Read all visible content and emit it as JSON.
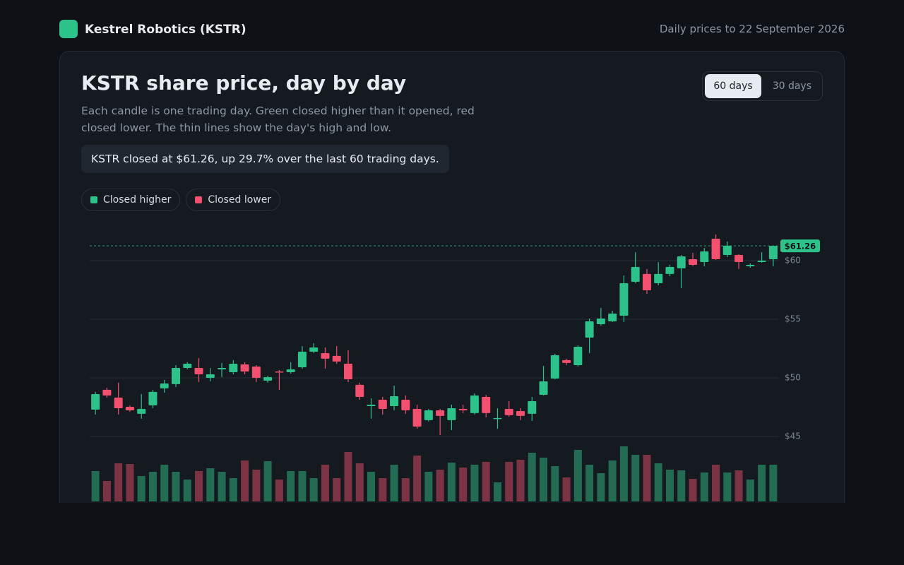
{
  "header": {
    "brand": "Kestrel Robotics (KSTR)",
    "updated": "Daily prices to 22 September 2026"
  },
  "controls": {
    "ranges": [
      "60 days",
      "30 days"
    ],
    "active": 0
  },
  "summary": "KSTR closed at $61.26, up 29.7% over the last 60 trading days.",
  "chart_data": {
    "type": "candlestick",
    "title": "KSTR share price, day by day",
    "subtitle": "Each candle is one trading day. Green closed higher than it opened, red closed lower. The thin lines show the day's high and low.",
    "legend": [
      {
        "name": "Closed higher",
        "color": "#2ec28b"
      },
      {
        "name": "Closed lower",
        "color": "#f2506e"
      }
    ],
    "up_color": "#2ec28b",
    "down_color": "#f2506e",
    "volume_up_color": "#246b53",
    "volume_down_color": "#7c3444",
    "open": [
      47.29,
      48.98,
      48.31,
      47.53,
      46.93,
      47.65,
      49.1,
      49.46,
      50.84,
      50.84,
      50.0,
      50.72,
      50.48,
      51.14,
      50.96,
      49.76,
      50.54,
      50.48,
      50.9,
      52.23,
      52.11,
      51.87,
      51.2,
      49.4,
      47.59,
      48.13,
      47.59,
      48.13,
      47.35,
      46.39,
      47.23,
      46.39,
      47.35,
      46.99,
      48.37,
      46.51,
      47.35,
      47.17,
      46.93,
      48.55,
      49.94,
      51.51,
      51.08,
      53.43,
      54.58,
      54.82,
      55.3,
      58.19,
      58.86,
      58.07,
      58.86,
      59.34,
      60.12,
      59.88,
      61.87,
      60.48,
      60.48,
      59.52,
      59.88,
      60.12
    ],
    "high": [
      48.8,
      49.16,
      49.58,
      47.65,
      48.61,
      48.98,
      49.82,
      51.08,
      51.33,
      51.69,
      50.84,
      51.27,
      51.51,
      51.33,
      51.08,
      50.18,
      50.66,
      51.33,
      52.71,
      52.95,
      52.59,
      52.71,
      52.35,
      49.58,
      48.25,
      48.37,
      49.34,
      48.49,
      47.71,
      47.35,
      47.35,
      47.71,
      47.71,
      48.67,
      48.55,
      47.41,
      48.01,
      47.41,
      48.37,
      51.02,
      52.05,
      51.63,
      52.77,
      55.06,
      55.96,
      55.72,
      58.73,
      60.72,
      59.28,
      59.88,
      59.64,
      60.48,
      60.66,
      61.08,
      62.23,
      61.63,
      60.54,
      59.76,
      60.72,
      61.27
    ],
    "low": [
      46.87,
      48.31,
      46.87,
      47.11,
      46.51,
      47.41,
      48.73,
      49.22,
      50.72,
      49.64,
      49.7,
      50.06,
      50.3,
      50.3,
      49.64,
      49.58,
      48.98,
      50.36,
      50.78,
      52.11,
      50.78,
      51.2,
      49.64,
      48.13,
      46.51,
      46.87,
      47.23,
      46.93,
      45.66,
      46.27,
      45.12,
      45.54,
      46.99,
      46.87,
      46.63,
      45.66,
      46.69,
      46.39,
      46.33,
      48.49,
      49.88,
      51.08,
      50.96,
      52.11,
      54.46,
      54.76,
      54.76,
      58.07,
      57.17,
      57.89,
      58.67,
      57.65,
      59.52,
      59.52,
      60.06,
      60.3,
      59.28,
      59.4,
      59.82,
      59.52
    ],
    "close": [
      48.61,
      48.49,
      47.41,
      47.23,
      47.35,
      48.8,
      49.52,
      50.84,
      51.2,
      50.3,
      50.3,
      50.84,
      51.2,
      50.54,
      50.0,
      50.06,
      50.48,
      50.72,
      52.23,
      52.59,
      51.63,
      51.39,
      49.88,
      48.37,
      47.71,
      47.35,
      48.43,
      47.23,
      45.84,
      47.23,
      46.75,
      47.41,
      47.23,
      48.49,
      46.99,
      46.57,
      46.81,
      46.75,
      48.01,
      49.7,
      51.93,
      51.27,
      52.65,
      54.82,
      55.06,
      55.48,
      58.07,
      59.46,
      57.47,
      58.86,
      59.46,
      60.36,
      59.64,
      60.78,
      60.12,
      61.27,
      59.88,
      59.64,
      60.0,
      61.26
    ],
    "volume": [
      4.3,
      2.9,
      5.4,
      5.3,
      3.6,
      4.2,
      5.2,
      4.2,
      3.1,
      4.3,
      4.7,
      4.2,
      3.3,
      5.8,
      4.5,
      5.7,
      3.1,
      4.3,
      4.3,
      3.3,
      5.2,
      3.3,
      7.0,
      5.4,
      4.2,
      3.3,
      5.2,
      3.3,
      6.5,
      4.2,
      4.5,
      5.5,
      4.8,
      5.2,
      5.6,
      2.7,
      5.6,
      5.9,
      6.9,
      6.2,
      5.0,
      3.4,
      7.3,
      5.2,
      4.0,
      5.8,
      7.8,
      6.6,
      6.6,
      5.4,
      4.5,
      4.4,
      3.2,
      4.1,
      5.2,
      4.1,
      4.4,
      3.1,
      5.2,
      5.2
    ],
    "last_close_label": "$61.26",
    "ylim": [
      44.6,
      62.5
    ],
    "yticks": [
      {
        "value": 45,
        "label": "$45"
      },
      {
        "value": 50,
        "label": "$50"
      },
      {
        "value": 55,
        "label": "$55"
      },
      {
        "value": 60,
        "label": "$60"
      }
    ],
    "grid": true
  }
}
